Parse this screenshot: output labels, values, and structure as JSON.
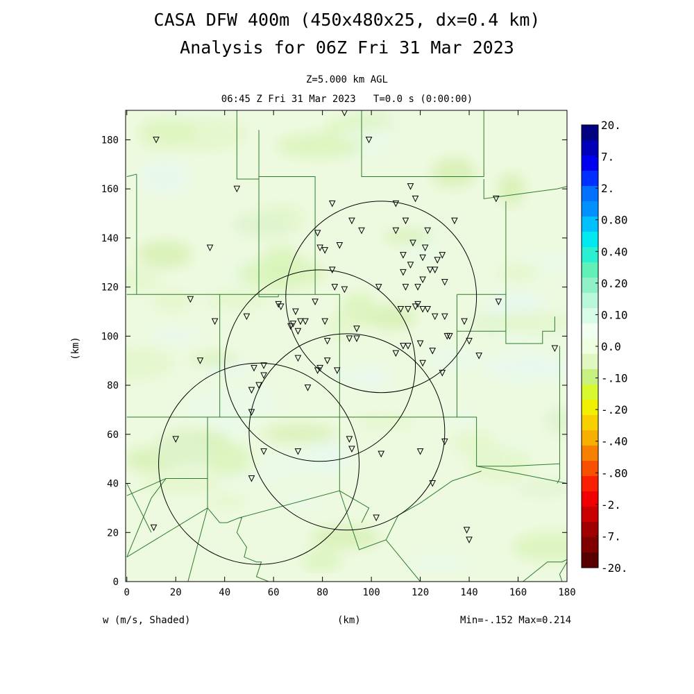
{
  "header": {
    "title_line1": "CASA DFW 400m (450x480x25, dx=0.4 km)",
    "title_line2": "Analysis for 06Z Fri 31 Mar 2023",
    "level": "Z=5.000 km AGL",
    "time": "06:45 Z Fri 31 Mar 2023   T=0.0 s (0:00:00)"
  },
  "footer": {
    "variable": "w (m/s, Shaded)",
    "x_unit": "(km)",
    "minmax": "Min=-.152 Max=0.214"
  },
  "axes": {
    "y_unit": "(km)"
  },
  "chart_data": {
    "type": "heatmap",
    "variable": "w",
    "units": "m/s",
    "xlim": [
      0,
      180
    ],
    "ylim": [
      0,
      192
    ],
    "x_ticks": [
      0,
      20,
      40,
      60,
      80,
      100,
      120,
      140,
      160,
      180
    ],
    "y_ticks": [
      0,
      20,
      40,
      60,
      80,
      100,
      120,
      140,
      160,
      180
    ],
    "min": -0.152,
    "max": 0.214,
    "colorbar": {
      "labels": [
        "20.",
        "7.",
        "2.",
        "0.80",
        "0.40",
        "0.20",
        "0.10",
        "0.0",
        "-.10",
        "-.20",
        "-.40",
        "-.80",
        "-2.",
        "-7.",
        "-20."
      ],
      "colors": [
        "#000080",
        "#0000b8",
        "#0000f0",
        "#0030ff",
        "#0070ff",
        "#0090ff",
        "#00c0ff",
        "#00e8f0",
        "#28f0d0",
        "#60f0b8",
        "#90f0c8",
        "#b8f8d8",
        "#d8fce8",
        "#f0fff0",
        "#f0ffe0",
        "#e0f8c0",
        "#c8f080",
        "#d8f830",
        "#f0f000",
        "#f8d000",
        "#f8b000",
        "#f88000",
        "#f85000",
        "#f82000",
        "#f00000",
        "#c80000",
        "#a00000",
        "#800000",
        "#580000"
      ]
    },
    "radar_rings": [
      {
        "center_x": 104,
        "center_y": 116,
        "radius": 39
      },
      {
        "center_x": 79,
        "center_y": 88,
        "radius": 39
      },
      {
        "center_x": 90,
        "center_y": 61,
        "radius": 40
      },
      {
        "center_x": 54,
        "center_y": 48,
        "radius": 41
      }
    ],
    "stations": [
      [
        12,
        180
      ],
      [
        89,
        191
      ],
      [
        99,
        180
      ],
      [
        45,
        160
      ],
      [
        34,
        136
      ],
      [
        26,
        115
      ],
      [
        36,
        106
      ],
      [
        49,
        108
      ],
      [
        30,
        90
      ],
      [
        11,
        22
      ],
      [
        20,
        58
      ],
      [
        52,
        87
      ],
      [
        56,
        88
      ],
      [
        51,
        78
      ],
      [
        54,
        80
      ],
      [
        56,
        84
      ],
      [
        51,
        69
      ],
      [
        51,
        42
      ],
      [
        56,
        53
      ],
      [
        70,
        53
      ],
      [
        74,
        79
      ],
      [
        78,
        86
      ],
      [
        79,
        87
      ],
      [
        82,
        90
      ],
      [
        70,
        91
      ],
      [
        77,
        114
      ],
      [
        78,
        142
      ],
      [
        79,
        136
      ],
      [
        81,
        135
      ],
      [
        84,
        127
      ],
      [
        84,
        154
      ],
      [
        87,
        137
      ],
      [
        92,
        147
      ],
      [
        96,
        143
      ],
      [
        94,
        99
      ],
      [
        94,
        103
      ],
      [
        91,
        99
      ],
      [
        91,
        58
      ],
      [
        92,
        54
      ],
      [
        104,
        52
      ],
      [
        102,
        26
      ],
      [
        85,
        120
      ],
      [
        89,
        119
      ],
      [
        103,
        120
      ],
      [
        110,
        143
      ],
      [
        110,
        154
      ],
      [
        116,
        161
      ],
      [
        118,
        156
      ],
      [
        114,
        147
      ],
      [
        117,
        138
      ],
      [
        113,
        133
      ],
      [
        113,
        126
      ],
      [
        114,
        120
      ],
      [
        116,
        129
      ],
      [
        119,
        120
      ],
      [
        121,
        123
      ],
      [
        121,
        132
      ],
      [
        122,
        136
      ],
      [
        123,
        143
      ],
      [
        124,
        127
      ],
      [
        126,
        127
      ],
      [
        127,
        131
      ],
      [
        129,
        133
      ],
      [
        130,
        122
      ],
      [
        134,
        147
      ],
      [
        110,
        93
      ],
      [
        113,
        96
      ],
      [
        115,
        96
      ],
      [
        120,
        97
      ],
      [
        121,
        89
      ],
      [
        125,
        94
      ],
      [
        129,
        85
      ],
      [
        131,
        100
      ],
      [
        132,
        100
      ],
      [
        140,
        98
      ],
      [
        144,
        92
      ],
      [
        138,
        106
      ],
      [
        115,
        111
      ],
      [
        118,
        112
      ],
      [
        119,
        113
      ],
      [
        121,
        111
      ],
      [
        123,
        111
      ],
      [
        126,
        108
      ],
      [
        130,
        108
      ],
      [
        112,
        111
      ],
      [
        120,
        53
      ],
      [
        130,
        57
      ],
      [
        125,
        40
      ],
      [
        139,
        21
      ],
      [
        140,
        17
      ],
      [
        151,
        156
      ],
      [
        152,
        114
      ],
      [
        175,
        95
      ],
      [
        62,
        113
      ],
      [
        63,
        112
      ],
      [
        67,
        104
      ],
      [
        68,
        105
      ],
      [
        69,
        110
      ],
      [
        70,
        102
      ],
      [
        71,
        106
      ],
      [
        73,
        106
      ],
      [
        81,
        106
      ],
      [
        82,
        98
      ],
      [
        86,
        86
      ]
    ],
    "county_lines": [
      [
        [
          4,
          166
        ],
        [
          4,
          117
        ],
        [
          38,
          117
        ]
      ],
      [
        [
          38,
          117
        ],
        [
          38,
          67
        ],
        [
          0,
          67
        ]
      ],
      [
        [
          38,
          117
        ],
        [
          62,
          117
        ],
        [
          77,
          117
        ],
        [
          77,
          165
        ],
        [
          54,
          165
        ],
        [
          54,
          184
        ]
      ],
      [
        [
          0,
          165
        ],
        [
          4,
          166
        ]
      ],
      [
        [
          0,
          117
        ],
        [
          4,
          117
        ]
      ],
      [
        [
          45,
          192
        ],
        [
          45,
          164
        ],
        [
          54,
          164
        ]
      ],
      [
        [
          96,
          192
        ],
        [
          96,
          165
        ],
        [
          146,
          165
        ],
        [
          146,
          192
        ]
      ],
      [
        [
          54,
          165
        ],
        [
          54,
          116
        ],
        [
          62,
          116
        ]
      ],
      [
        [
          62,
          116
        ],
        [
          62,
          117
        ]
      ],
      [
        [
          77,
          117
        ],
        [
          87,
          117
        ],
        [
          87,
          67
        ]
      ],
      [
        [
          38,
          67
        ],
        [
          87,
          67
        ],
        [
          120,
          67
        ],
        [
          135,
          67
        ],
        [
          135,
          117
        ]
      ],
      [
        [
          87,
          67
        ],
        [
          87,
          37
        ]
      ],
      [
        [
          135,
          117
        ],
        [
          155,
          117
        ],
        [
          155,
          102
        ]
      ],
      [
        [
          135,
          102
        ],
        [
          155,
          102
        ],
        [
          155,
          97
        ],
        [
          170,
          97
        ],
        [
          170,
          102
        ],
        [
          175,
          102
        ],
        [
          175,
          108
        ]
      ],
      [
        [
          146,
          164
        ],
        [
          146,
          156
        ],
        [
          176,
          160
        ],
        [
          180,
          161
        ]
      ],
      [
        [
          155,
          155
        ],
        [
          155,
          117
        ]
      ],
      [
        [
          177,
          96
        ],
        [
          177,
          42
        ],
        [
          176,
          40
        ]
      ],
      [
        [
          135,
          67
        ],
        [
          143,
          67
        ],
        [
          143,
          47
        ],
        [
          157,
          47
        ],
        [
          177,
          48
        ]
      ],
      [
        [
          143,
          47
        ],
        [
          160,
          44
        ],
        [
          180,
          40
        ]
      ],
      [
        [
          33,
          67
        ],
        [
          33,
          30
        ],
        [
          25,
          0
        ]
      ],
      [
        [
          33,
          30
        ],
        [
          0,
          10
        ]
      ],
      [
        [
          33,
          42
        ],
        [
          16,
          42
        ],
        [
          10,
          34
        ],
        [
          0,
          10
        ]
      ],
      [
        [
          16,
          42
        ],
        [
          0,
          35
        ]
      ],
      [
        [
          0,
          40
        ],
        [
          10,
          20
        ]
      ],
      [
        [
          33,
          30
        ],
        [
          38,
          24
        ],
        [
          41,
          24
        ],
        [
          46,
          26
        ],
        [
          47,
          26
        ],
        [
          45,
          20
        ],
        [
          49,
          14
        ],
        [
          48,
          10
        ],
        [
          53,
          8
        ],
        [
          55,
          8
        ],
        [
          53,
          2
        ],
        [
          58,
          0
        ]
      ],
      [
        [
          46,
          26
        ],
        [
          87,
          37
        ]
      ],
      [
        [
          87,
          37
        ],
        [
          95,
          13
        ],
        [
          106,
          17
        ],
        [
          111,
          27
        ],
        [
          120,
          32
        ],
        [
          133,
          41
        ],
        [
          145,
          45
        ]
      ],
      [
        [
          106,
          17
        ],
        [
          120,
          0
        ]
      ],
      [
        [
          87,
          37
        ],
        [
          99,
          30
        ],
        [
          96,
          24
        ]
      ],
      [
        [
          162,
          0
        ],
        [
          172,
          8
        ],
        [
          178,
          8
        ],
        [
          180,
          9
        ]
      ],
      [
        [
          180,
          8
        ],
        [
          177,
          3
        ],
        [
          178,
          0
        ]
      ]
    ]
  }
}
